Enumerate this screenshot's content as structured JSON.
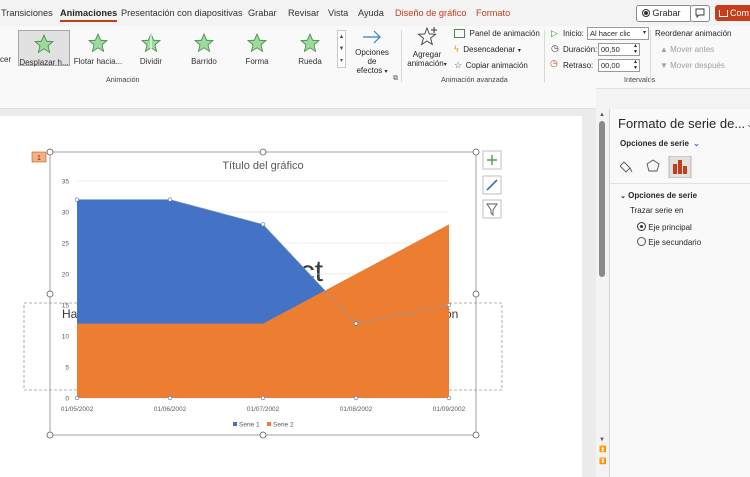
{
  "tabs": [
    "Transiciones",
    "Animaciones",
    "Presentación con diapositivas",
    "Grabar",
    "Revisar",
    "Vista",
    "Ayuda",
    "Diseño de gráfico",
    "Formato"
  ],
  "record_button": "Grabar",
  "share_button": "Com",
  "ribbon": {
    "partial_left": "cer",
    "animations": [
      "Desplazar h...",
      "Flotar hacia...",
      "Dividir",
      "Barrido",
      "Forma",
      "Rueda"
    ],
    "effect_options": [
      "Opciones de",
      "efectos"
    ],
    "group_animation": "Animación",
    "add_animation": [
      "Agregar",
      "animación"
    ],
    "animation_panel": "Panel de animación",
    "trigger": "Desencadenar",
    "copy_animation": "Copiar animación",
    "group_advanced": "Animación avanzada",
    "start_label": "Inicio:",
    "start_value": "Al hacer clic",
    "duration_label": "Duración:",
    "duration_value": "00,50",
    "delay_label": "Retraso:",
    "delay_value": "00,00",
    "group_intervals": "Intervalos",
    "reorder_title": "Reordenar animación",
    "move_earlier": "Mover antes",
    "move_later": "Mover después"
  },
  "slide": {
    "badge": "1",
    "bg_text_1": "ntact",
    "bg_text_2_left": "Ha",
    "bg_text_2_right": "ón"
  },
  "chart_data": {
    "type": "area",
    "title": "Título del gráfico",
    "x": [
      "01/05/2002",
      "01/06/2002",
      "01/07/2002",
      "01/08/2002",
      "01/09/2002"
    ],
    "ylim": [
      0,
      35
    ],
    "yticks": [
      "0",
      "5",
      "10",
      "15",
      "20",
      "25",
      "30",
      "35"
    ],
    "series": [
      {
        "name": "Serie 1",
        "color": "#4472c4",
        "values": [
          32,
          32,
          28,
          12,
          15
        ]
      },
      {
        "name": "Serie 2",
        "color": "#ed7d31",
        "values": [
          12,
          12,
          12,
          20,
          28
        ]
      }
    ],
    "legend": "bottom"
  },
  "pane": {
    "title": "Formato de serie de...",
    "options_dropdown": "Opciones de serie",
    "section": "Opciones de serie",
    "plot_on": "Trazar serie en",
    "primary_axis": "Eje principal",
    "secondary_axis": "Eje secundario"
  }
}
